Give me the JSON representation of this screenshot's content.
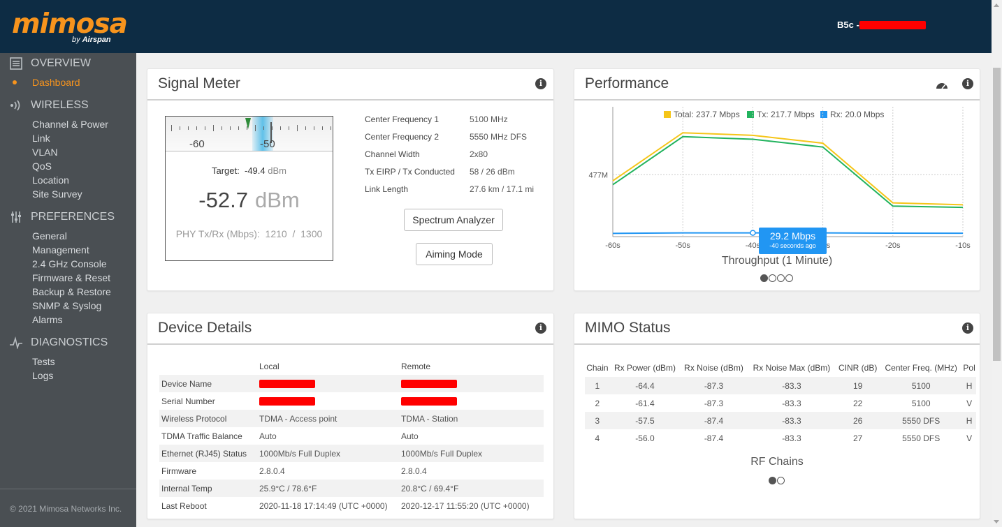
{
  "header": {
    "brand": "mimosa",
    "brand_sub_prefix": "by",
    "brand_sub": "Airspan",
    "device_name": "B5c -"
  },
  "sidebar": {
    "sections": [
      {
        "label": "OVERVIEW",
        "icon": "list-icon"
      },
      {
        "label": "WIRELESS",
        "icon": "wireless-icon"
      },
      {
        "label": "PREFERENCES",
        "icon": "sliders-icon"
      },
      {
        "label": "DIAGNOSTICS",
        "icon": "pulse-icon"
      }
    ],
    "overview_items": [
      "Dashboard"
    ],
    "wireless_items": [
      "Channel & Power",
      "Link",
      "VLAN",
      "QoS",
      "Location",
      "Site Survey"
    ],
    "preferences_items": [
      "General",
      "Management",
      "2.4 GHz Console",
      "Firmware & Reset",
      "Backup & Restore",
      "SNMP & Syslog",
      "Alarms"
    ],
    "diagnostics_items": [
      "Tests",
      "Logs"
    ],
    "copyright": "© 2021 Mimosa Networks Inc."
  },
  "signal_meter": {
    "title": "Signal Meter",
    "scale_labels": [
      "-60",
      "-50"
    ],
    "target_label": "Target:",
    "target_value": "-49.4",
    "target_unit": "dBm",
    "value": "-52.7",
    "unit": "dBm",
    "phy_label": "PHY Tx/Rx (Mbps):",
    "phy_tx": "1210",
    "phy_sep": "/",
    "phy_rx": "1300",
    "details": [
      {
        "label": "Center Frequency 1",
        "value": "5100 MHz"
      },
      {
        "label": "Center Frequency 2",
        "value": "5550 MHz DFS"
      },
      {
        "label": "Channel Width",
        "value": "2x80"
      },
      {
        "label": "Tx EIRP / Tx Conducted",
        "value": "58 / 26 dBm"
      },
      {
        "label": "Link Length",
        "value": "27.6 km / 17.1 mi"
      }
    ],
    "spectrum_button": "Spectrum Analyzer",
    "aiming_button": "Aiming Mode"
  },
  "performance": {
    "title": "Performance",
    "legend": [
      {
        "label": "Total: 237.7 Mbps",
        "color": "#f5c518"
      },
      {
        "label": "Tx: 217.7 Mbps",
        "color": "#22b35e"
      },
      {
        "label": "Rx: 20.0 Mbps",
        "color": "#2196f3"
      }
    ],
    "tooltip_value": "29.2 Mbps",
    "tooltip_sub": "-40 seconds ago",
    "chart_title": "Throughput (1 Minute)"
  },
  "chart_data": {
    "type": "line",
    "title": "Throughput (1 Minute)",
    "x": [
      "-60s",
      "-50s",
      "-40s",
      "-30s",
      "-20s",
      "-10s"
    ],
    "y_tick_labels": [
      "477M"
    ],
    "ylim": [
      0,
      1000
    ],
    "series": [
      {
        "name": "Total: 237.7 Mbps",
        "color": "#f5c518",
        "values": [
          430,
          800,
          780,
          720,
          260,
          245
        ]
      },
      {
        "name": "Tx: 217.7 Mbps",
        "color": "#22b35e",
        "values": [
          400,
          770,
          750,
          690,
          235,
          225
        ]
      },
      {
        "name": "Rx: 20.0 Mbps",
        "color": "#2196f3",
        "values": [
          25,
          29,
          29,
          29,
          27,
          26
        ]
      }
    ],
    "grid": true,
    "legend_position": "top"
  },
  "device_details": {
    "title": "Device Details",
    "col_local": "Local",
    "col_remote": "Remote",
    "rows": [
      {
        "label": "Device Name",
        "local": "",
        "remote": "",
        "redacted": true
      },
      {
        "label": "Serial Number",
        "local": "",
        "remote": "",
        "redacted": true
      },
      {
        "label": "Wireless Protocol",
        "local": "TDMA - Access point",
        "remote": "TDMA - Station"
      },
      {
        "label": "TDMA Traffic Balance",
        "local": "Auto",
        "remote": "Auto"
      },
      {
        "label": "Ethernet (RJ45) Status",
        "local": "1000Mb/s Full Duplex",
        "remote": "1000Mb/s Full Duplex"
      },
      {
        "label": "Firmware",
        "local": "2.8.0.4",
        "remote": "2.8.0.4"
      },
      {
        "label": "Internal Temp",
        "local": "25.9°C / 78.6°F",
        "remote": "20.8°C / 69.4°F"
      },
      {
        "label": "Last Reboot",
        "local": "2020-11-18 17:14:49 (UTC +0000)",
        "remote": "2020-12-17 11:55:20 (UTC +0000)"
      }
    ]
  },
  "mimo": {
    "title": "MIMO Status",
    "headers": [
      "Chain",
      "Rx Power (dBm)",
      "Rx Noise (dBm)",
      "Rx Noise Max (dBm)",
      "CINR (dB)",
      "Center Freq. (MHz)",
      "Pol"
    ],
    "rows": [
      [
        "1",
        "-64.4",
        "-87.3",
        "-83.3",
        "19",
        "5100",
        "H"
      ],
      [
        "2",
        "-61.4",
        "-87.3",
        "-83.3",
        "22",
        "5100",
        "V"
      ],
      [
        "3",
        "-57.5",
        "-87.4",
        "-83.3",
        "26",
        "5550 DFS",
        "H"
      ],
      [
        "4",
        "-56.0",
        "-87.4",
        "-83.3",
        "27",
        "5550 DFS",
        "V"
      ]
    ],
    "chart_title": "RF Chains"
  }
}
